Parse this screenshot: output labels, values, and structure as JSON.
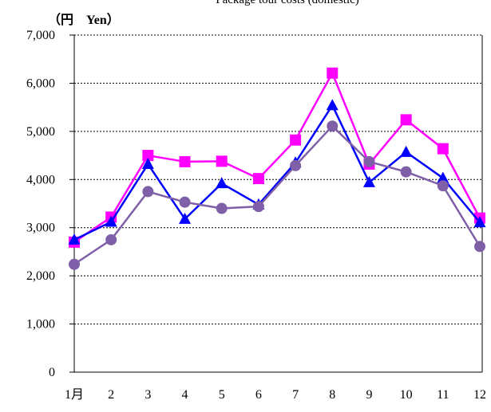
{
  "chart_data": {
    "type": "line",
    "title": "Package tour costs (domestic)",
    "unit_label": "（円　Yen）",
    "x": [
      "1月",
      "2",
      "3",
      "4",
      "5",
      "6",
      "7",
      "8",
      "9",
      "10",
      "11",
      "12"
    ],
    "ylim": [
      0,
      7000
    ],
    "yticks": [
      "0",
      "1,000",
      "2,000",
      "3,000",
      "4,000",
      "5,000",
      "6,000",
      "7,000"
    ],
    "grid": true,
    "series": [
      {
        "marker": "square",
        "color": "#ff00ff",
        "values": [
          2700,
          3220,
          4500,
          4370,
          4380,
          4020,
          4820,
          6210,
          4320,
          5240,
          4640,
          3200
        ]
      },
      {
        "marker": "triangle",
        "color": "#0000ff",
        "values": [
          2750,
          3120,
          4320,
          3180,
          3920,
          3480,
          4350,
          5540,
          3940,
          4570,
          4030,
          3110
        ]
      },
      {
        "marker": "circle",
        "color": "#7f5fa7",
        "values": [
          2240,
          2750,
          3750,
          3530,
          3400,
          3440,
          4290,
          5110,
          4370,
          4160,
          3870,
          2610
        ]
      }
    ]
  }
}
